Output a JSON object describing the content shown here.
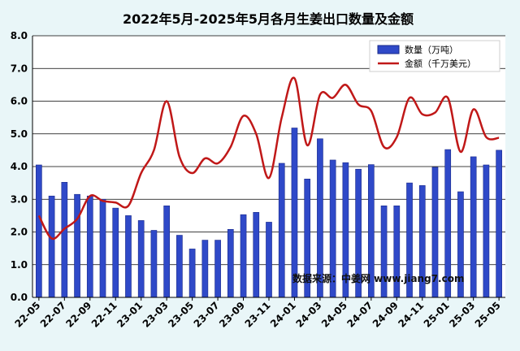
{
  "chart_data": {
    "type": "bar",
    "title": "2022年5月-2025年5月各月生姜出口数量及金额",
    "x": [
      "22-05",
      "22-06",
      "22-07",
      "22-08",
      "22-09",
      "22-10",
      "22-11",
      "22-12",
      "23-01",
      "23-02",
      "23-03",
      "23-04",
      "23-05",
      "23-06",
      "23-07",
      "23-08",
      "23-09",
      "23-10",
      "23-11",
      "23-12",
      "24-01",
      "24-02",
      "24-03",
      "24-04",
      "24-05",
      "24-06",
      "24-07",
      "24-08",
      "24-09",
      "24-10",
      "24-11",
      "24-12",
      "25-01",
      "25-02",
      "25-03",
      "25-04",
      "25-05"
    ],
    "tick_labels": [
      "22-05",
      "22-07",
      "22-09",
      "22-11",
      "23-01",
      "23-03",
      "23-05",
      "23-07",
      "23-09",
      "23-11",
      "24-01",
      "24-03",
      "24-05",
      "24-07",
      "24-09",
      "24-11",
      "25-01",
      "25-03",
      "25-05"
    ],
    "ylim": [
      0,
      8
    ],
    "y_ticks": [
      "0.0",
      "1.0",
      "2.0",
      "3.0",
      "4.0",
      "5.0",
      "6.0",
      "7.0",
      "8.0"
    ],
    "grid": true,
    "legend_position": "top-right",
    "series": [
      {
        "name": "数量（万吨）",
        "type": "bar",
        "color": "#2f49c8",
        "values": [
          4.05,
          3.1,
          3.52,
          3.15,
          3.1,
          3.0,
          2.73,
          2.5,
          2.35,
          2.05,
          2.8,
          1.9,
          1.48,
          1.75,
          1.75,
          2.08,
          2.53,
          2.6,
          2.3,
          4.1,
          5.18,
          3.62,
          4.85,
          4.2,
          4.12,
          3.92,
          4.06,
          2.8,
          2.8,
          3.5,
          3.42,
          3.98,
          4.52,
          3.23,
          4.3,
          4.05,
          4.5
        ]
      },
      {
        "name": "金额（千万美元）",
        "type": "line",
        "color": "#c01818",
        "values": [
          2.5,
          1.8,
          2.1,
          2.4,
          3.1,
          2.95,
          2.9,
          2.8,
          3.8,
          4.5,
          6.0,
          4.3,
          3.8,
          4.25,
          4.1,
          4.6,
          5.55,
          5.0,
          3.65,
          5.5,
          6.7,
          4.65,
          6.2,
          6.1,
          6.5,
          5.9,
          5.7,
          4.6,
          4.9,
          6.1,
          5.6,
          5.65,
          6.1,
          4.45,
          5.75,
          4.9,
          4.88
        ]
      }
    ],
    "annotation": "数据来源：中姜网 www.jiang7.com"
  }
}
